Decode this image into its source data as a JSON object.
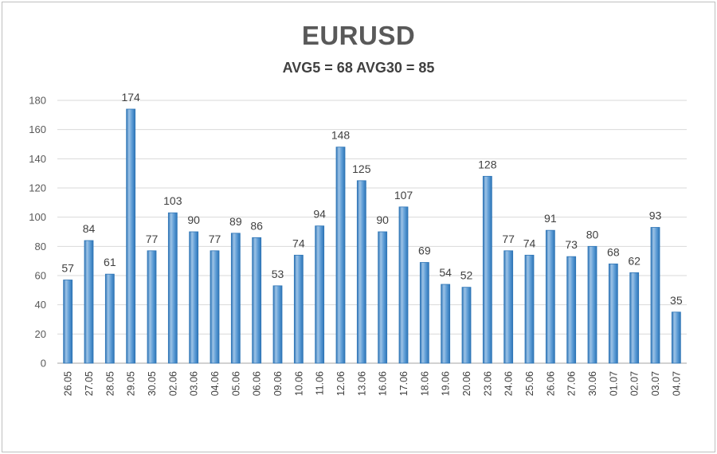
{
  "chart_data": {
    "type": "bar",
    "title": "EURUSD",
    "subtitle": "AVG5 = 68 AVG30 = 85",
    "categories": [
      "26.05",
      "27.05",
      "28.05",
      "29.05",
      "30.05",
      "02.06",
      "03.06",
      "04.06",
      "05.06",
      "06.06",
      "09.06",
      "10.06",
      "11.06",
      "12.06",
      "13.06",
      "16.06",
      "17.06",
      "18.06",
      "19.06",
      "20.06",
      "23.06",
      "24.06",
      "25.06",
      "26.06",
      "27.06",
      "30.06",
      "01.07",
      "02.07",
      "03.07",
      "04.07"
    ],
    "values": [
      57,
      84,
      61,
      174,
      77,
      103,
      90,
      77,
      89,
      86,
      53,
      74,
      94,
      148,
      125,
      90,
      107,
      69,
      54,
      52,
      128,
      77,
      74,
      91,
      73,
      80,
      68,
      62,
      93,
      35
    ],
    "ylim": [
      0,
      180
    ],
    "yticks": [
      0,
      20,
      40,
      60,
      80,
      100,
      120,
      140,
      160,
      180
    ],
    "grid": true,
    "legend": "none",
    "xlabel": "",
    "ylabel": "",
    "colors": {
      "bar_light": "#9dc3e6",
      "bar_main": "#5b9bd5",
      "bar_dark": "#2e75b6",
      "grid": "#d9d9d9",
      "axis": "#a6a6a6"
    }
  }
}
